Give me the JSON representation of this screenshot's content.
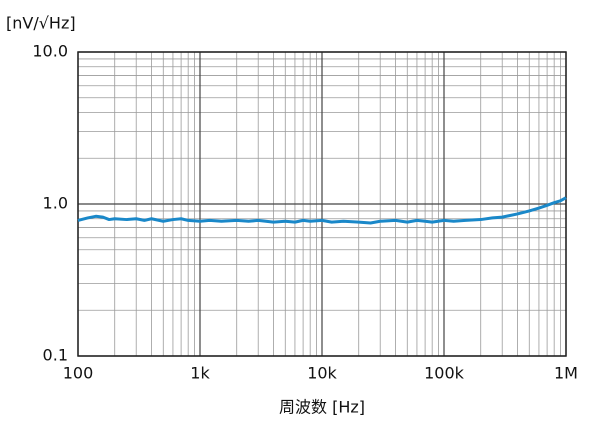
{
  "chart_data": {
    "type": "line",
    "y_label": "[nV/√Hz]",
    "x_label": "周波数 [Hz]",
    "x": [
      100,
      120,
      140,
      160,
      180,
      200,
      250,
      300,
      350,
      400,
      500,
      600,
      700,
      800,
      1000,
      1200,
      1500,
      2000,
      2500,
      3000,
      4000,
      5000,
      6000,
      7000,
      8000,
      10000,
      12000,
      15000,
      20000,
      25000,
      30000,
      40000,
      50000,
      60000,
      70000,
      80000,
      100000,
      120000,
      150000,
      200000,
      250000,
      300000,
      400000,
      500000,
      600000,
      700000,
      800000,
      900000,
      1000000
    ],
    "values": [
      0.78,
      0.81,
      0.83,
      0.82,
      0.79,
      0.8,
      0.79,
      0.8,
      0.78,
      0.8,
      0.77,
      0.79,
      0.8,
      0.78,
      0.77,
      0.78,
      0.77,
      0.78,
      0.77,
      0.78,
      0.76,
      0.77,
      0.76,
      0.78,
      0.77,
      0.78,
      0.76,
      0.77,
      0.76,
      0.75,
      0.77,
      0.78,
      0.76,
      0.78,
      0.77,
      0.76,
      0.78,
      0.77,
      0.78,
      0.79,
      0.81,
      0.82,
      0.86,
      0.9,
      0.94,
      0.98,
      1.02,
      1.05,
      1.1
    ],
    "color": "#1a88c9",
    "xlim": [
      100,
      1000000
    ],
    "ylim": [
      0.1,
      10
    ],
    "xticks": [
      100,
      {
        "value": 1000,
        "label": "1k"
      },
      {
        "value": 10000,
        "label": "10k"
      },
      {
        "value": 100000,
        "label": "100k"
      },
      {
        "value": 1000000,
        "label": "1M"
      }
    ],
    "yticks": [
      0.1,
      {
        "value": 1,
        "label": "1.0"
      },
      {
        "value": 10,
        "label": "10.0"
      }
    ],
    "log_x": true,
    "log_y": true,
    "grid": true,
    "minor_grid": true
  }
}
